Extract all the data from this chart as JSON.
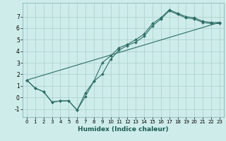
{
  "title": "",
  "xlabel": "Humidex (Indice chaleur)",
  "ylabel": "",
  "bg_color": "#ceecea",
  "grid_color": "#aed4d0",
  "line_color": "#2e6e64",
  "xlim": [
    -0.5,
    23.5
  ],
  "ylim": [
    -1.7,
    8.2
  ],
  "xticks": [
    0,
    1,
    2,
    3,
    4,
    5,
    6,
    7,
    8,
    9,
    10,
    11,
    12,
    13,
    14,
    15,
    16,
    17,
    18,
    19,
    20,
    21,
    22,
    23
  ],
  "yticks": [
    -1,
    0,
    1,
    2,
    3,
    4,
    5,
    6,
    7
  ],
  "line1_x": [
    0,
    1,
    2,
    3,
    4,
    5,
    6,
    7,
    8,
    9,
    10,
    11,
    12,
    13,
    14,
    15,
    16,
    17,
    18,
    19,
    20,
    21,
    22,
    23
  ],
  "line1_y": [
    1.5,
    0.8,
    0.5,
    -0.4,
    -0.3,
    -0.3,
    -1.1,
    0.4,
    1.4,
    3.0,
    3.6,
    4.3,
    4.6,
    5.0,
    5.5,
    6.4,
    6.9,
    7.6,
    7.3,
    7.0,
    6.9,
    6.6,
    6.5,
    6.5
  ],
  "line2_x": [
    0,
    1,
    2,
    3,
    4,
    5,
    6,
    7,
    8,
    9,
    10,
    11,
    12,
    13,
    14,
    15,
    16,
    17,
    18,
    19,
    20,
    21,
    22,
    23
  ],
  "line2_y": [
    1.5,
    0.8,
    0.5,
    -0.4,
    -0.3,
    -0.3,
    -1.1,
    0.1,
    1.4,
    2.0,
    3.3,
    4.1,
    4.5,
    4.8,
    5.3,
    6.2,
    6.8,
    7.5,
    7.2,
    6.9,
    6.8,
    6.5,
    6.4,
    6.4
  ],
  "line3_x": [
    0,
    23
  ],
  "line3_y": [
    1.5,
    6.5
  ]
}
